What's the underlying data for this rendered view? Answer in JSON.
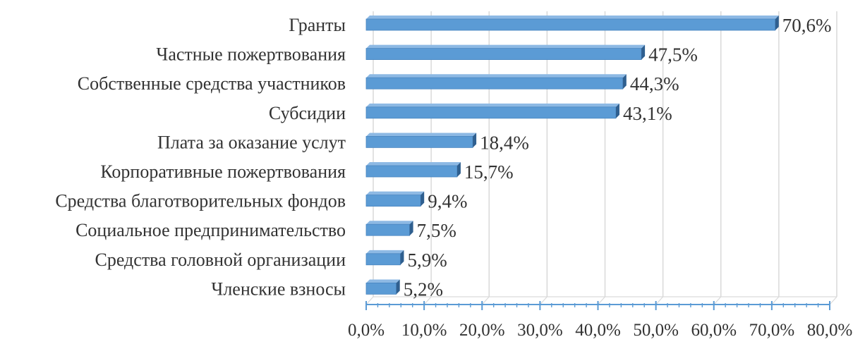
{
  "chart_data": {
    "type": "bar",
    "orientation": "horizontal",
    "categories": [
      "Гранты",
      "Частные пожертвования",
      "Собственные средства участников",
      "Субсидии",
      "Плата за оказание услут",
      "Корпоративные пожертвования",
      "Средства благотворительных фондов",
      "Социальное предпринимательство",
      "Средства головной организации",
      "Членские взносы"
    ],
    "values": [
      70.6,
      47.5,
      44.3,
      43.1,
      18.4,
      15.7,
      9.4,
      7.5,
      5.9,
      5.2
    ],
    "value_labels": [
      "70,6%",
      "47,5%",
      "44,3%",
      "43,1%",
      "18,4%",
      "15,7%",
      "9,4%",
      "7,5%",
      "5,9%",
      "5,2%"
    ],
    "xlim": [
      0,
      80
    ],
    "x_ticks": [
      0,
      10,
      20,
      30,
      40,
      50,
      60,
      70,
      80
    ],
    "x_tick_labels": [
      "0,0%",
      "10,0%",
      "20,0%",
      "30,0%",
      "40,0%",
      "50,0%",
      "60,0%",
      "70,0%",
      "80,0%"
    ],
    "grid": true,
    "style": "3d",
    "bar_color": "#5b9bd5",
    "title": "",
    "xlabel": "",
    "ylabel": ""
  }
}
